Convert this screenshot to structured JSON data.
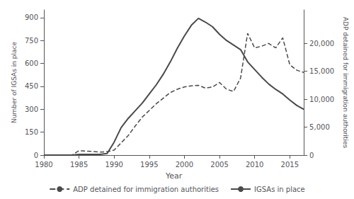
{
  "chart_data": {
    "type": "line",
    "xlabel": "Year",
    "ylabel": "Number of IGSAs in place",
    "y2label": "ADP detained for immigration authorities",
    "x": [
      1980,
      1981,
      1982,
      1983,
      1984,
      1985,
      1986,
      1987,
      1988,
      1989,
      1990,
      1991,
      1992,
      1993,
      1994,
      1995,
      1996,
      1997,
      1998,
      1999,
      2000,
      2001,
      2002,
      2003,
      2004,
      2005,
      2006,
      2007,
      2008,
      2009,
      2010,
      2011,
      2012,
      2013,
      2014,
      2015,
      2016,
      2017
    ],
    "series": [
      {
        "name": "ADP detained for immigration authorities",
        "color": "#4a4a4a",
        "line_style": "dashed",
        "axis": "y2",
        "values": [
          0,
          0,
          0,
          0,
          0,
          800,
          700,
          650,
          550,
          600,
          900,
          2200,
          3500,
          5200,
          6800,
          8000,
          9200,
          10200,
          11200,
          11800,
          12200,
          12400,
          12500,
          12000,
          12200,
          13000,
          11800,
          11400,
          13800,
          21800,
          19200,
          19500,
          20000,
          19200,
          21000,
          16200,
          15200,
          14800
        ]
      },
      {
        "name": "IGSAs in place",
        "color": "#4a4a4a",
        "line_style": "solid",
        "values": [
          0,
          0,
          0,
          0,
          0,
          5,
          5,
          5,
          5,
          10,
          85,
          180,
          240,
          290,
          340,
          400,
          460,
          530,
          610,
          700,
          780,
          850,
          895,
          870,
          840,
          790,
          750,
          720,
          690,
          610,
          560,
          510,
          465,
          430,
          400,
          360,
          325,
          300
        ]
      }
    ],
    "xlim": [
      1980,
      2017
    ],
    "xticks": [
      1980,
      1985,
      1990,
      1995,
      2000,
      2005,
      2010,
      2015
    ],
    "ylim": [
      0,
      950
    ],
    "yticks": [
      0,
      150,
      300,
      450,
      600,
      750,
      900
    ],
    "y2lim": [
      0,
      26000
    ],
    "y2ticks": [
      0,
      {
        "value": 5000,
        "label": "5,000"
      },
      {
        "value": 10000,
        "label": "10,000"
      },
      {
        "value": 15000,
        "label": "15,000"
      },
      {
        "value": 20000,
        "label": "20,000"
      }
    ],
    "legend": "bottom",
    "grid": false
  }
}
